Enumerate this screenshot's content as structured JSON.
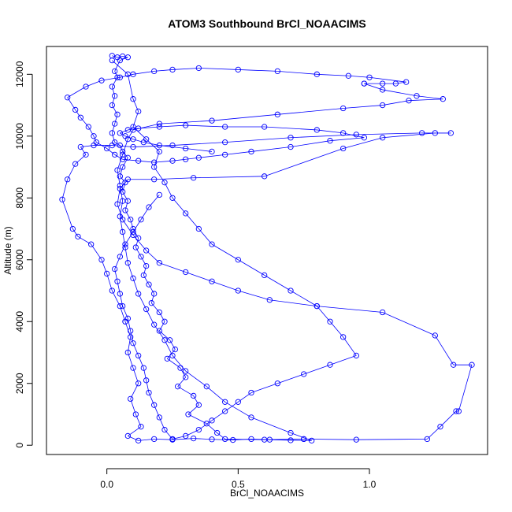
{
  "chart_data": {
    "type": "line",
    "title": "ATOM3 Southbound BrCl_NOAACIMS",
    "xlabel": "BrCl_NOAACIMS",
    "ylabel": "Altitude (m)",
    "xlim": [
      -0.23,
      1.45
    ],
    "ylim": [
      -300,
      12900
    ],
    "xticks": [
      0.0,
      0.5,
      1.0
    ],
    "xtick_labels": [
      "0.0",
      "0.5",
      "1.0"
    ],
    "yticks": [
      0,
      2000,
      4000,
      6000,
      8000,
      10000,
      12000
    ],
    "ytick_labels": [
      "0",
      "2000",
      "4000",
      "6000",
      "8000",
      "10000",
      "12000"
    ],
    "grid": false,
    "marker": "open-circle",
    "color": "#0000ff",
    "series": [
      {
        "points": [
          [
            0.02,
            12600
          ],
          [
            0.04,
            12550
          ],
          [
            0.06,
            12580
          ],
          [
            0.08,
            12550
          ],
          [
            0.05,
            12450
          ],
          [
            0.03,
            12100
          ],
          [
            0.04,
            11900
          ],
          [
            0.02,
            11600
          ],
          [
            0.03,
            11300
          ],
          [
            0.02,
            11000
          ],
          [
            0.04,
            10700
          ],
          [
            0.03,
            10400
          ],
          [
            0.02,
            10100
          ],
          [
            0.03,
            9800
          ],
          [
            0.05,
            9700
          ],
          [
            0.06,
            9500
          ],
          [
            0.08,
            9300
          ],
          [
            0.06,
            9000
          ],
          [
            0.05,
            8700
          ],
          [
            0.07,
            8500
          ],
          [
            0.06,
            8200
          ],
          [
            0.08,
            7900
          ],
          [
            0.07,
            7600
          ],
          [
            0.09,
            7300
          ],
          [
            0.1,
            7000
          ],
          [
            0.12,
            6700
          ],
          [
            0.11,
            6400
          ],
          [
            0.13,
            6100
          ],
          [
            0.15,
            5800
          ],
          [
            0.14,
            5500
          ],
          [
            0.16,
            5200
          ],
          [
            0.18,
            4900
          ],
          [
            0.17,
            4600
          ],
          [
            0.2,
            4300
          ],
          [
            0.22,
            4000
          ],
          [
            0.2,
            3700
          ],
          [
            0.24,
            3400
          ],
          [
            0.26,
            3100
          ],
          [
            0.23,
            2800
          ],
          [
            0.28,
            2500
          ],
          [
            0.3,
            2200
          ],
          [
            0.27,
            1900
          ],
          [
            0.33,
            1600
          ],
          [
            0.35,
            1300
          ],
          [
            0.31,
            1000
          ],
          [
            0.38,
            700
          ],
          [
            0.42,
            400
          ],
          [
            0.45,
            200
          ],
          [
            0.6,
            180
          ],
          [
            0.75,
            200
          ]
        ]
      },
      {
        "points": [
          [
            0.75,
            200
          ],
          [
            0.95,
            180
          ],
          [
            1.22,
            200
          ],
          [
            1.27,
            600
          ],
          [
            1.33,
            1100
          ],
          [
            1.34,
            1100
          ],
          [
            1.39,
            2600
          ],
          [
            1.32,
            2600
          ],
          [
            1.25,
            3550
          ],
          [
            1.05,
            4300
          ],
          [
            0.8,
            4500
          ],
          [
            0.62,
            4700
          ],
          [
            0.5,
            5000
          ],
          [
            0.4,
            5300
          ],
          [
            0.3,
            5600
          ],
          [
            0.2,
            5900
          ],
          [
            0.15,
            6300
          ],
          [
            0.1,
            6800
          ],
          [
            0.06,
            7300
          ],
          [
            0.04,
            7800
          ],
          [
            0.05,
            8300
          ],
          [
            0.08,
            8600
          ],
          [
            0.18,
            8600
          ],
          [
            0.33,
            8650
          ],
          [
            0.6,
            8700
          ],
          [
            0.9,
            9600
          ],
          [
            1.05,
            9950
          ],
          [
            1.25,
            10100
          ],
          [
            1.31,
            10100
          ],
          [
            1.2,
            10100
          ],
          [
            0.95,
            10050
          ],
          [
            0.7,
            9950
          ],
          [
            0.45,
            9800
          ],
          [
            0.25,
            9700
          ],
          [
            0.1,
            9650
          ],
          [
            0.02,
            9700
          ],
          [
            -0.05,
            9700
          ],
          [
            -0.1,
            9650
          ],
          [
            -0.08,
            9400
          ],
          [
            -0.12,
            9100
          ],
          [
            -0.15,
            8600
          ],
          [
            -0.17,
            7950
          ],
          [
            -0.13,
            7000
          ],
          [
            -0.11,
            6750
          ],
          [
            -0.06,
            6500
          ],
          [
            -0.02,
            6000
          ],
          [
            0.0,
            5550
          ],
          [
            0.02,
            5000
          ],
          [
            0.05,
            4500
          ],
          [
            0.07,
            4000
          ]
        ]
      },
      {
        "points": [
          [
            0.07,
            4000
          ],
          [
            0.09,
            3500
          ],
          [
            0.08,
            3000
          ],
          [
            0.1,
            2500
          ],
          [
            0.12,
            2000
          ],
          [
            0.09,
            1500
          ],
          [
            0.11,
            1000
          ],
          [
            0.13,
            600
          ],
          [
            0.08,
            300
          ],
          [
            0.12,
            150
          ],
          [
            0.18,
            200
          ],
          [
            0.25,
            180
          ],
          [
            0.33,
            220
          ],
          [
            0.4,
            190
          ],
          [
            0.48,
            170
          ],
          [
            0.55,
            200
          ],
          [
            0.62,
            180
          ],
          [
            0.7,
            160
          ],
          [
            0.78,
            150
          ],
          [
            0.7,
            400
          ],
          [
            0.55,
            900
          ],
          [
            0.45,
            1400
          ],
          [
            0.38,
            1900
          ],
          [
            0.3,
            2400
          ],
          [
            0.25,
            2900
          ],
          [
            0.22,
            3400
          ],
          [
            0.18,
            3900
          ],
          [
            0.15,
            4400
          ],
          [
            0.12,
            4900
          ],
          [
            0.1,
            5400
          ],
          [
            0.08,
            5900
          ],
          [
            0.07,
            6400
          ],
          [
            0.06,
            6900
          ],
          [
            0.05,
            7400
          ],
          [
            0.06,
            7900
          ],
          [
            0.05,
            8400
          ],
          [
            0.04,
            8900
          ],
          [
            0.06,
            9400
          ],
          [
            0.08,
            9900
          ],
          [
            0.1,
            10200
          ],
          [
            0.2,
            10400
          ],
          [
            0.4,
            10500
          ],
          [
            0.65,
            10700
          ],
          [
            0.9,
            10900
          ],
          [
            1.05,
            11000
          ],
          [
            1.15,
            11150
          ],
          [
            1.28,
            11200
          ],
          [
            1.18,
            11300
          ],
          [
            1.05,
            11500
          ],
          [
            0.98,
            11700
          ]
        ]
      },
      {
        "points": [
          [
            0.98,
            11700
          ],
          [
            1.05,
            11700
          ],
          [
            1.1,
            11700
          ],
          [
            1.14,
            11750
          ],
          [
            1.0,
            11900
          ],
          [
            0.92,
            11950
          ],
          [
            0.8,
            12000
          ],
          [
            0.65,
            12100
          ],
          [
            0.5,
            12150
          ],
          [
            0.35,
            12200
          ],
          [
            0.25,
            12150
          ],
          [
            0.18,
            12100
          ],
          [
            0.1,
            12000
          ],
          [
            0.05,
            11900
          ],
          [
            -0.02,
            11800
          ],
          [
            -0.08,
            11600
          ],
          [
            -0.15,
            11250
          ],
          [
            -0.12,
            10850
          ],
          [
            -0.1,
            10600
          ],
          [
            -0.07,
            10300
          ],
          [
            -0.05,
            10000
          ],
          [
            -0.04,
            9800
          ],
          [
            0.0,
            9600
          ],
          [
            0.03,
            9400
          ],
          [
            0.06,
            9250
          ],
          [
            0.12,
            9200
          ],
          [
            0.18,
            9150
          ],
          [
            0.25,
            9200
          ],
          [
            0.3,
            9250
          ],
          [
            0.35,
            9300
          ],
          [
            0.45,
            9400
          ],
          [
            0.55,
            9500
          ],
          [
            0.7,
            9650
          ],
          [
            0.85,
            9850
          ],
          [
            0.98,
            9950
          ],
          [
            0.9,
            10100
          ],
          [
            0.8,
            10200
          ],
          [
            0.6,
            10300
          ],
          [
            0.45,
            10300
          ],
          [
            0.3,
            10350
          ],
          [
            0.2,
            10300
          ],
          [
            0.12,
            10250
          ],
          [
            0.08,
            10200
          ],
          [
            0.05,
            10100
          ],
          [
            0.07,
            10000
          ],
          [
            0.1,
            9900
          ],
          [
            0.14,
            9800
          ],
          [
            0.2,
            9700
          ],
          [
            0.3,
            9600
          ],
          [
            0.4,
            9500
          ]
        ]
      },
      {
        "points": [
          [
            0.02,
            12450
          ],
          [
            0.08,
            12000
          ],
          [
            0.1,
            11200
          ],
          [
            0.12,
            10800
          ],
          [
            0.1,
            10300
          ],
          [
            0.15,
            9900
          ],
          [
            0.2,
            9500
          ],
          [
            0.18,
            9000
          ],
          [
            0.22,
            8500
          ],
          [
            0.25,
            8000
          ],
          [
            0.3,
            7500
          ],
          [
            0.35,
            7000
          ],
          [
            0.4,
            6500
          ],
          [
            0.5,
            6000
          ],
          [
            0.6,
            5500
          ],
          [
            0.7,
            5000
          ],
          [
            0.8,
            4500
          ],
          [
            0.85,
            4000
          ],
          [
            0.9,
            3500
          ],
          [
            0.95,
            2900
          ],
          [
            0.85,
            2600
          ],
          [
            0.75,
            2300
          ],
          [
            0.65,
            2000
          ],
          [
            0.55,
            1700
          ],
          [
            0.5,
            1400
          ],
          [
            0.45,
            1100
          ],
          [
            0.4,
            800
          ],
          [
            0.35,
            500
          ],
          [
            0.3,
            300
          ],
          [
            0.25,
            200
          ],
          [
            0.22,
            500
          ],
          [
            0.2,
            900
          ],
          [
            0.18,
            1300
          ],
          [
            0.16,
            1700
          ],
          [
            0.15,
            2100
          ],
          [
            0.14,
            2500
          ],
          [
            0.12,
            2900
          ],
          [
            0.1,
            3300
          ],
          [
            0.09,
            3700
          ],
          [
            0.08,
            4100
          ],
          [
            0.06,
            4500
          ],
          [
            0.05,
            4900
          ],
          [
            0.04,
            5300
          ],
          [
            0.03,
            5700
          ],
          [
            0.05,
            6100
          ],
          [
            0.07,
            6500
          ],
          [
            0.1,
            6900
          ],
          [
            0.13,
            7300
          ],
          [
            0.16,
            7700
          ],
          [
            0.2,
            8100
          ]
        ]
      }
    ]
  }
}
